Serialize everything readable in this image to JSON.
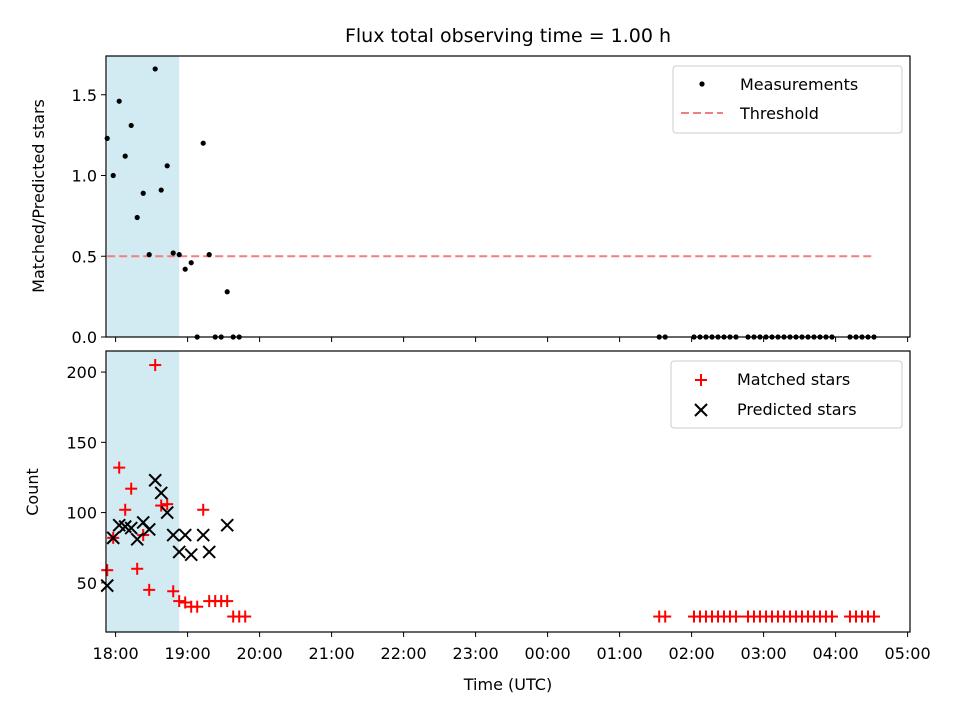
{
  "chart_data": [
    {
      "type": "scatter",
      "title": "Flux total observing time = 1.00 h",
      "ylabel": "Matched/Predicted stars",
      "xlabel": "",
      "xlim": [
        "17:52",
        "05:02"
      ],
      "ylim": [
        0,
        1.74
      ],
      "yticks": [
        0.0,
        0.5,
        1.0,
        1.5
      ],
      "ytick_labels": [
        "0.0",
        "0.5",
        "1.0",
        "1.5"
      ],
      "x_tick_times": [
        "18:00",
        "19:00",
        "20:00",
        "21:00",
        "22:00",
        "23:00",
        "00:00",
        "01:00",
        "02:00",
        "03:00",
        "04:00",
        "05:00"
      ],
      "grid": false,
      "legend_position": "top-right",
      "shaded_span": {
        "start": "17:53",
        "end": "18:53",
        "color": "#add8e6"
      },
      "series": [
        {
          "name": "Measurements",
          "marker": "dot",
          "color": "#000000",
          "points": [
            [
              "17:53",
              1.23
            ],
            [
              "17:58",
              1.0
            ],
            [
              "18:03",
              1.46
            ],
            [
              "18:08",
              1.12
            ],
            [
              "18:13",
              1.31
            ],
            [
              "18:18",
              0.74
            ],
            [
              "18:23",
              0.89
            ],
            [
              "18:28",
              0.51
            ],
            [
              "18:33",
              1.66
            ],
            [
              "18:38",
              0.91
            ],
            [
              "18:43",
              1.06
            ],
            [
              "18:48",
              0.52
            ],
            [
              "18:53",
              0.51
            ],
            [
              "18:58",
              0.42
            ],
            [
              "19:03",
              0.46
            ],
            [
              "19:08",
              0.0
            ],
            [
              "19:13",
              1.2
            ],
            [
              "19:18",
              0.51
            ],
            [
              "19:23",
              0.0
            ],
            [
              "19:28",
              0.0
            ],
            [
              "19:33",
              0.28
            ],
            [
              "19:38",
              0.0
            ],
            [
              "19:43",
              0.0
            ],
            [
              "01:33",
              0.0
            ],
            [
              "01:38",
              0.0
            ],
            [
              "02:02",
              0.0
            ],
            [
              "02:07",
              0.0
            ],
            [
              "02:12",
              0.0
            ],
            [
              "02:17",
              0.0
            ],
            [
              "02:22",
              0.0
            ],
            [
              "02:27",
              0.0
            ],
            [
              "02:32",
              0.0
            ],
            [
              "02:37",
              0.0
            ],
            [
              "02:47",
              0.0
            ],
            [
              "02:52",
              0.0
            ],
            [
              "02:57",
              0.0
            ],
            [
              "03:02",
              0.0
            ],
            [
              "03:07",
              0.0
            ],
            [
              "03:12",
              0.0
            ],
            [
              "03:17",
              0.0
            ],
            [
              "03:22",
              0.0
            ],
            [
              "03:27",
              0.0
            ],
            [
              "03:32",
              0.0
            ],
            [
              "03:37",
              0.0
            ],
            [
              "03:42",
              0.0
            ],
            [
              "03:47",
              0.0
            ],
            [
              "03:52",
              0.0
            ],
            [
              "03:57",
              0.0
            ],
            [
              "04:12",
              0.0
            ],
            [
              "04:17",
              0.0
            ],
            [
              "04:22",
              0.0
            ],
            [
              "04:27",
              0.0
            ],
            [
              "04:32",
              0.0
            ]
          ]
        },
        {
          "name": "Threshold",
          "marker": "dashed-line",
          "color": "#f08080",
          "points": [
            [
              "17:53",
              0.5
            ],
            [
              "04:32",
              0.5
            ]
          ]
        }
      ]
    },
    {
      "type": "scatter",
      "title": "",
      "ylabel": "Count",
      "xlabel": "Time (UTC)",
      "xlim": [
        "17:52",
        "05:02"
      ],
      "ylim": [
        15,
        215
      ],
      "yticks": [
        50,
        100,
        150,
        200
      ],
      "ytick_labels": [
        "50",
        "100",
        "150",
        "200"
      ],
      "x_tick_times": [
        "18:00",
        "19:00",
        "20:00",
        "21:00",
        "22:00",
        "23:00",
        "00:00",
        "01:00",
        "02:00",
        "03:00",
        "04:00",
        "05:00"
      ],
      "xtick_labels": [
        "18:00",
        "19:00",
        "20:00",
        "21:00",
        "22:00",
        "23:00",
        "00:00",
        "01:00",
        "02:00",
        "03:00",
        "04:00",
        "05:00"
      ],
      "grid": false,
      "legend_position": "top-right",
      "shaded_span": {
        "start": "17:53",
        "end": "18:53",
        "color": "#add8e6"
      },
      "series": [
        {
          "name": "Matched stars",
          "marker": "plus",
          "color": "#ff0000",
          "points": [
            [
              "17:53",
              59
            ],
            [
              "17:58",
              82
            ],
            [
              "18:03",
              132
            ],
            [
              "18:08",
              102
            ],
            [
              "18:13",
              117
            ],
            [
              "18:18",
              60
            ],
            [
              "18:23",
              84
            ],
            [
              "18:28",
              45
            ],
            [
              "18:33",
              205
            ],
            [
              "18:38",
              105
            ],
            [
              "18:43",
              106
            ],
            [
              "18:48",
              44
            ],
            [
              "18:53",
              37
            ],
            [
              "18:58",
              36
            ],
            [
              "19:03",
              33
            ],
            [
              "19:08",
              33
            ],
            [
              "19:13",
              102
            ],
            [
              "19:18",
              37
            ],
            [
              "19:23",
              37
            ],
            [
              "19:28",
              37
            ],
            [
              "19:33",
              37
            ],
            [
              "19:38",
              26
            ],
            [
              "19:43",
              26
            ],
            [
              "19:48",
              26
            ],
            [
              "01:33",
              26
            ],
            [
              "01:38",
              26
            ],
            [
              "02:02",
              26
            ],
            [
              "02:07",
              26
            ],
            [
              "02:12",
              26
            ],
            [
              "02:17",
              26
            ],
            [
              "02:22",
              26
            ],
            [
              "02:27",
              26
            ],
            [
              "02:32",
              26
            ],
            [
              "02:37",
              26
            ],
            [
              "02:47",
              26
            ],
            [
              "02:52",
              26
            ],
            [
              "02:57",
              26
            ],
            [
              "03:02",
              26
            ],
            [
              "03:07",
              26
            ],
            [
              "03:12",
              26
            ],
            [
              "03:17",
              26
            ],
            [
              "03:22",
              26
            ],
            [
              "03:27",
              26
            ],
            [
              "03:32",
              26
            ],
            [
              "03:37",
              26
            ],
            [
              "03:42",
              26
            ],
            [
              "03:47",
              26
            ],
            [
              "03:52",
              26
            ],
            [
              "03:57",
              26
            ],
            [
              "04:12",
              26
            ],
            [
              "04:17",
              26
            ],
            [
              "04:22",
              26
            ],
            [
              "04:27",
              26
            ],
            [
              "04:32",
              26
            ]
          ]
        },
        {
          "name": "Predicted stars",
          "marker": "x",
          "color": "#000000",
          "points": [
            [
              "17:53",
              48
            ],
            [
              "17:58",
              82
            ],
            [
              "18:03",
              91
            ],
            [
              "18:08",
              90
            ],
            [
              "18:13",
              89
            ],
            [
              "18:18",
              81
            ],
            [
              "18:23",
              93
            ],
            [
              "18:28",
              88
            ],
            [
              "18:33",
              123
            ],
            [
              "18:38",
              114
            ],
            [
              "18:43",
              100
            ],
            [
              "18:48",
              84
            ],
            [
              "18:53",
              72
            ],
            [
              "18:58",
              84
            ],
            [
              "19:03",
              70
            ],
            [
              "19:13",
              84
            ],
            [
              "19:18",
              72
            ],
            [
              "19:33",
              91
            ]
          ]
        }
      ]
    }
  ]
}
